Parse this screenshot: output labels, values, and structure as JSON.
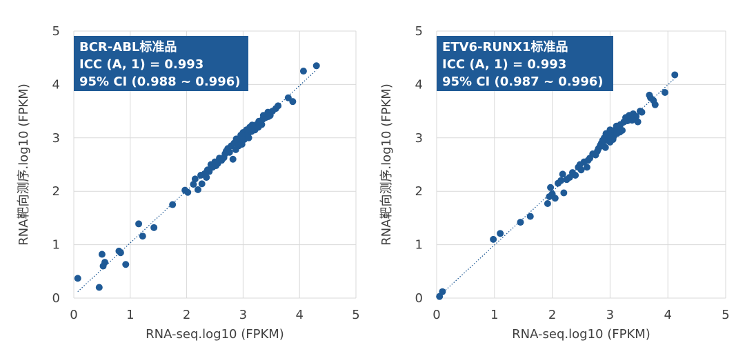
{
  "chart_data": [
    {
      "type": "scatter",
      "xlabel": "RNA-seq.log10 (FPKM)",
      "ylabel": "RNA靶向测序.log10 (FPKM)",
      "xlim": [
        0,
        5
      ],
      "ylim": [
        0,
        5
      ],
      "xticks": [
        "0",
        "1",
        "2",
        "3",
        "4",
        "5"
      ],
      "yticks": [
        "0",
        "1",
        "2",
        "3",
        "4",
        "5"
      ],
      "grid": true,
      "trendline": "dotted linear",
      "annotation": [
        "BCR-ABL标准品",
        "ICC (A, 1) = 0.993",
        "95% CI (0.988 ~ 0.996)"
      ],
      "color": "#1f5a96",
      "annotation_color": "#1f5a96",
      "points": [
        [
          0.07,
          0.37
        ],
        [
          0.45,
          0.2
        ],
        [
          0.5,
          0.82
        ],
        [
          0.52,
          0.6
        ],
        [
          0.55,
          0.67
        ],
        [
          0.92,
          0.63
        ],
        [
          0.8,
          0.88
        ],
        [
          0.83,
          0.85
        ],
        [
          1.15,
          1.39
        ],
        [
          1.22,
          1.16
        ],
        [
          1.42,
          1.32
        ],
        [
          1.75,
          1.75
        ],
        [
          1.97,
          2.02
        ],
        [
          2.02,
          1.98
        ],
        [
          2.12,
          2.13
        ],
        [
          2.15,
          2.23
        ],
        [
          2.2,
          2.03
        ],
        [
          2.27,
          2.14
        ],
        [
          2.32,
          2.33
        ],
        [
          2.37,
          2.4
        ],
        [
          2.4,
          2.37
        ],
        [
          2.43,
          2.5
        ],
        [
          2.46,
          2.45
        ],
        [
          2.5,
          2.55
        ],
        [
          2.55,
          2.52
        ],
        [
          2.58,
          2.62
        ],
        [
          2.62,
          2.58
        ],
        [
          2.66,
          2.63
        ],
        [
          2.7,
          2.75
        ],
        [
          2.73,
          2.8
        ],
        [
          2.76,
          2.73
        ],
        [
          2.79,
          2.85
        ],
        [
          2.82,
          2.6
        ],
        [
          2.84,
          2.9
        ],
        [
          2.87,
          2.78
        ],
        [
          2.9,
          2.95
        ],
        [
          2.92,
          2.85
        ],
        [
          2.95,
          3.0
        ],
        [
          2.98,
          2.88
        ],
        [
          3.0,
          3.1
        ],
        [
          3.03,
          3.05
        ],
        [
          3.06,
          3.15
        ],
        [
          3.09,
          3.08
        ],
        [
          3.12,
          3.2
        ],
        [
          3.15,
          3.12
        ],
        [
          3.18,
          3.22
        ],
        [
          3.21,
          3.15
        ],
        [
          3.24,
          3.25
        ],
        [
          3.27,
          3.2
        ],
        [
          3.3,
          3.3
        ],
        [
          3.33,
          3.25
        ],
        [
          3.36,
          3.42
        ],
        [
          3.4,
          3.38
        ],
        [
          3.44,
          3.48
        ],
        [
          3.48,
          3.42
        ],
        [
          3.52,
          3.5
        ],
        [
          3.58,
          3.55
        ],
        [
          3.62,
          3.6
        ],
        [
          3.8,
          3.75
        ],
        [
          3.88,
          3.68
        ],
        [
          4.07,
          4.25
        ],
        [
          4.3,
          4.35
        ],
        [
          2.25,
          2.3
        ],
        [
          2.35,
          2.26
        ],
        [
          2.52,
          2.48
        ],
        [
          2.68,
          2.7
        ],
        [
          2.88,
          2.98
        ],
        [
          3.02,
          2.97
        ],
        [
          3.14,
          3.18
        ],
        [
          3.35,
          3.35
        ],
        [
          3.1,
          3.0
        ],
        [
          2.96,
          3.05
        ],
        [
          3.16,
          3.24
        ],
        [
          3.28,
          3.31
        ],
        [
          3.45,
          3.4
        ]
      ]
    },
    {
      "type": "scatter",
      "xlabel": "RNA-seq.log10 (FPKM)",
      "ylabel": "RNA靶向测序.log10 (FPKM)",
      "xlim": [
        0,
        5
      ],
      "ylim": [
        0,
        5
      ],
      "xticks": [
        "0",
        "1",
        "2",
        "3",
        "4",
        "5"
      ],
      "yticks": [
        "0",
        "1",
        "2",
        "3",
        "4",
        "5"
      ],
      "grid": true,
      "trendline": "dotted linear",
      "annotation": [
        "ETV6-RUNX1标准品",
        "ICC (A, 1) = 0.993",
        "95% CI (0.987 ~ 0.996)"
      ],
      "color": "#1f5a96",
      "annotation_color": "#1f5a96",
      "points": [
        [
          0.05,
          0.03
        ],
        [
          0.1,
          0.12
        ],
        [
          0.98,
          1.1
        ],
        [
          1.1,
          1.21
        ],
        [
          1.45,
          1.42
        ],
        [
          1.62,
          1.53
        ],
        [
          1.92,
          1.77
        ],
        [
          1.95,
          1.9
        ],
        [
          1.97,
          2.07
        ],
        [
          2.0,
          1.95
        ],
        [
          2.05,
          1.87
        ],
        [
          2.1,
          2.15
        ],
        [
          2.15,
          2.2
        ],
        [
          2.18,
          2.32
        ],
        [
          2.2,
          1.97
        ],
        [
          2.25,
          2.22
        ],
        [
          2.3,
          2.26
        ],
        [
          2.35,
          2.35
        ],
        [
          2.4,
          2.3
        ],
        [
          2.45,
          2.45
        ],
        [
          2.5,
          2.4
        ],
        [
          2.55,
          2.55
        ],
        [
          2.6,
          2.45
        ],
        [
          2.65,
          2.62
        ],
        [
          2.7,
          2.7
        ],
        [
          2.75,
          2.68
        ],
        [
          2.8,
          2.8
        ],
        [
          2.85,
          2.9
        ],
        [
          2.88,
          2.85
        ],
        [
          2.9,
          3.0
        ],
        [
          2.92,
          2.82
        ],
        [
          2.95,
          2.95
        ],
        [
          2.98,
          3.05
        ],
        [
          3.0,
          2.92
        ],
        [
          3.03,
          3.1
        ],
        [
          3.06,
          3.02
        ],
        [
          3.09,
          3.15
        ],
        [
          3.12,
          3.08
        ],
        [
          3.15,
          3.2
        ],
        [
          3.18,
          3.25
        ],
        [
          3.21,
          3.14
        ],
        [
          3.24,
          3.3
        ],
        [
          3.27,
          3.38
        ],
        [
          3.3,
          3.32
        ],
        [
          3.33,
          3.42
        ],
        [
          3.36,
          3.36
        ],
        [
          3.4,
          3.45
        ],
        [
          3.45,
          3.4
        ],
        [
          3.48,
          3.3
        ],
        [
          3.52,
          3.5
        ],
        [
          3.68,
          3.8
        ],
        [
          3.75,
          3.7
        ],
        [
          3.78,
          3.62
        ],
        [
          3.95,
          3.85
        ],
        [
          4.12,
          4.18
        ],
        [
          2.87,
          2.95
        ],
        [
          2.93,
          3.08
        ],
        [
          3.0,
          3.15
        ],
        [
          3.05,
          2.97
        ],
        [
          3.11,
          3.22
        ],
        [
          3.17,
          3.11
        ],
        [
          2.78,
          2.75
        ],
        [
          2.83,
          2.86
        ],
        [
          2.62,
          2.58
        ],
        [
          2.48,
          2.5
        ],
        [
          3.38,
          3.33
        ],
        [
          3.55,
          3.48
        ],
        [
          3.7,
          3.75
        ]
      ]
    }
  ]
}
